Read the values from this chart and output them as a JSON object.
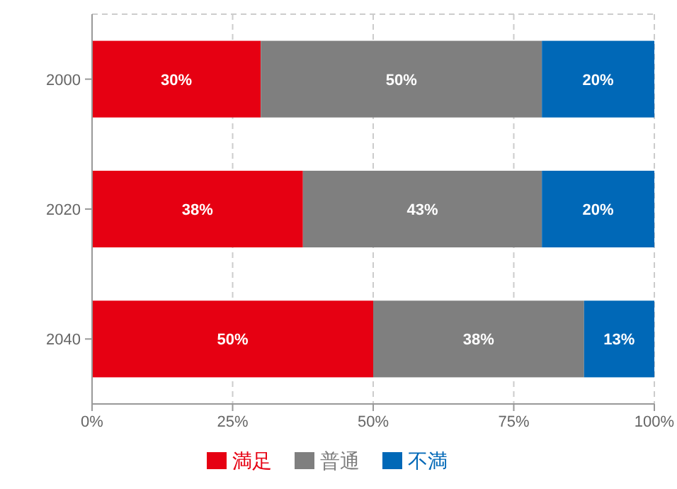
{
  "chart_data": {
    "type": "bar",
    "orientation": "horizontal",
    "stacked": true,
    "categories": [
      "2000",
      "2020",
      "2040"
    ],
    "series": [
      {
        "name": "満足",
        "color": "#e60012",
        "values": [
          30,
          37.5,
          50
        ],
        "value_labels": [
          "30%",
          "38%",
          "50%"
        ]
      },
      {
        "name": "普通",
        "color": "#7f7f7f",
        "values": [
          50,
          42.5,
          37.5
        ],
        "value_labels": [
          "50%",
          "43%",
          "38%"
        ]
      },
      {
        "name": "不満",
        "color": "#0068b7",
        "values": [
          20,
          20,
          12.5
        ],
        "value_labels": [
          "20%",
          "20%",
          "13%"
        ]
      }
    ],
    "xlim": [
      0,
      100
    ],
    "xticks": [
      {
        "value": 0,
        "label": "0%"
      },
      {
        "value": 25,
        "label": "25%"
      },
      {
        "value": 50,
        "label": "50%"
      },
      {
        "value": 75,
        "label": "75%"
      },
      {
        "value": 100,
        "label": "100%"
      }
    ],
    "grid": "x",
    "legend": "bottom"
  }
}
